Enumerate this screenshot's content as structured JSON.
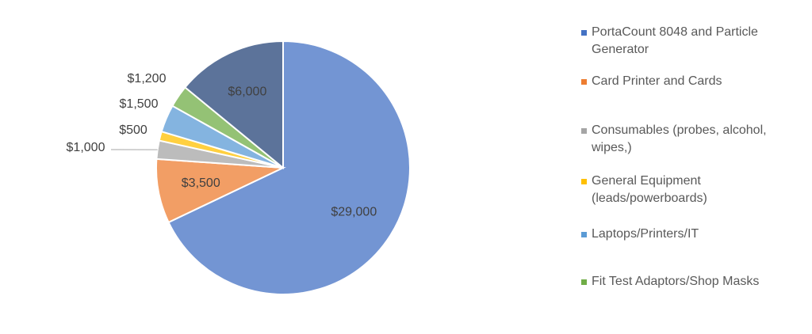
{
  "chart_data": {
    "type": "pie",
    "categories": [
      "PortaCount 8048 and Particle Generator",
      "Card Printer and Cards",
      "Consumables (probes, alcohol, wipes,)",
      "General Equipment (leads/powerboards)",
      "Laptops/Printers/IT",
      "Fit Test Adaptors/Shop Masks",
      null
    ],
    "values": [
      29000,
      3500,
      1000,
      500,
      1500,
      1200,
      6000
    ],
    "value_labels": [
      "$29,000",
      "$3,500",
      "$1,000",
      "$500",
      "$1,500",
      "$1,200",
      "$6,000"
    ],
    "colors": [
      "#4472c4",
      "#ed7d31",
      "#a5a5a5",
      "#ffc000",
      "#5b9bd5",
      "#70ad47",
      "#264478"
    ]
  }
}
